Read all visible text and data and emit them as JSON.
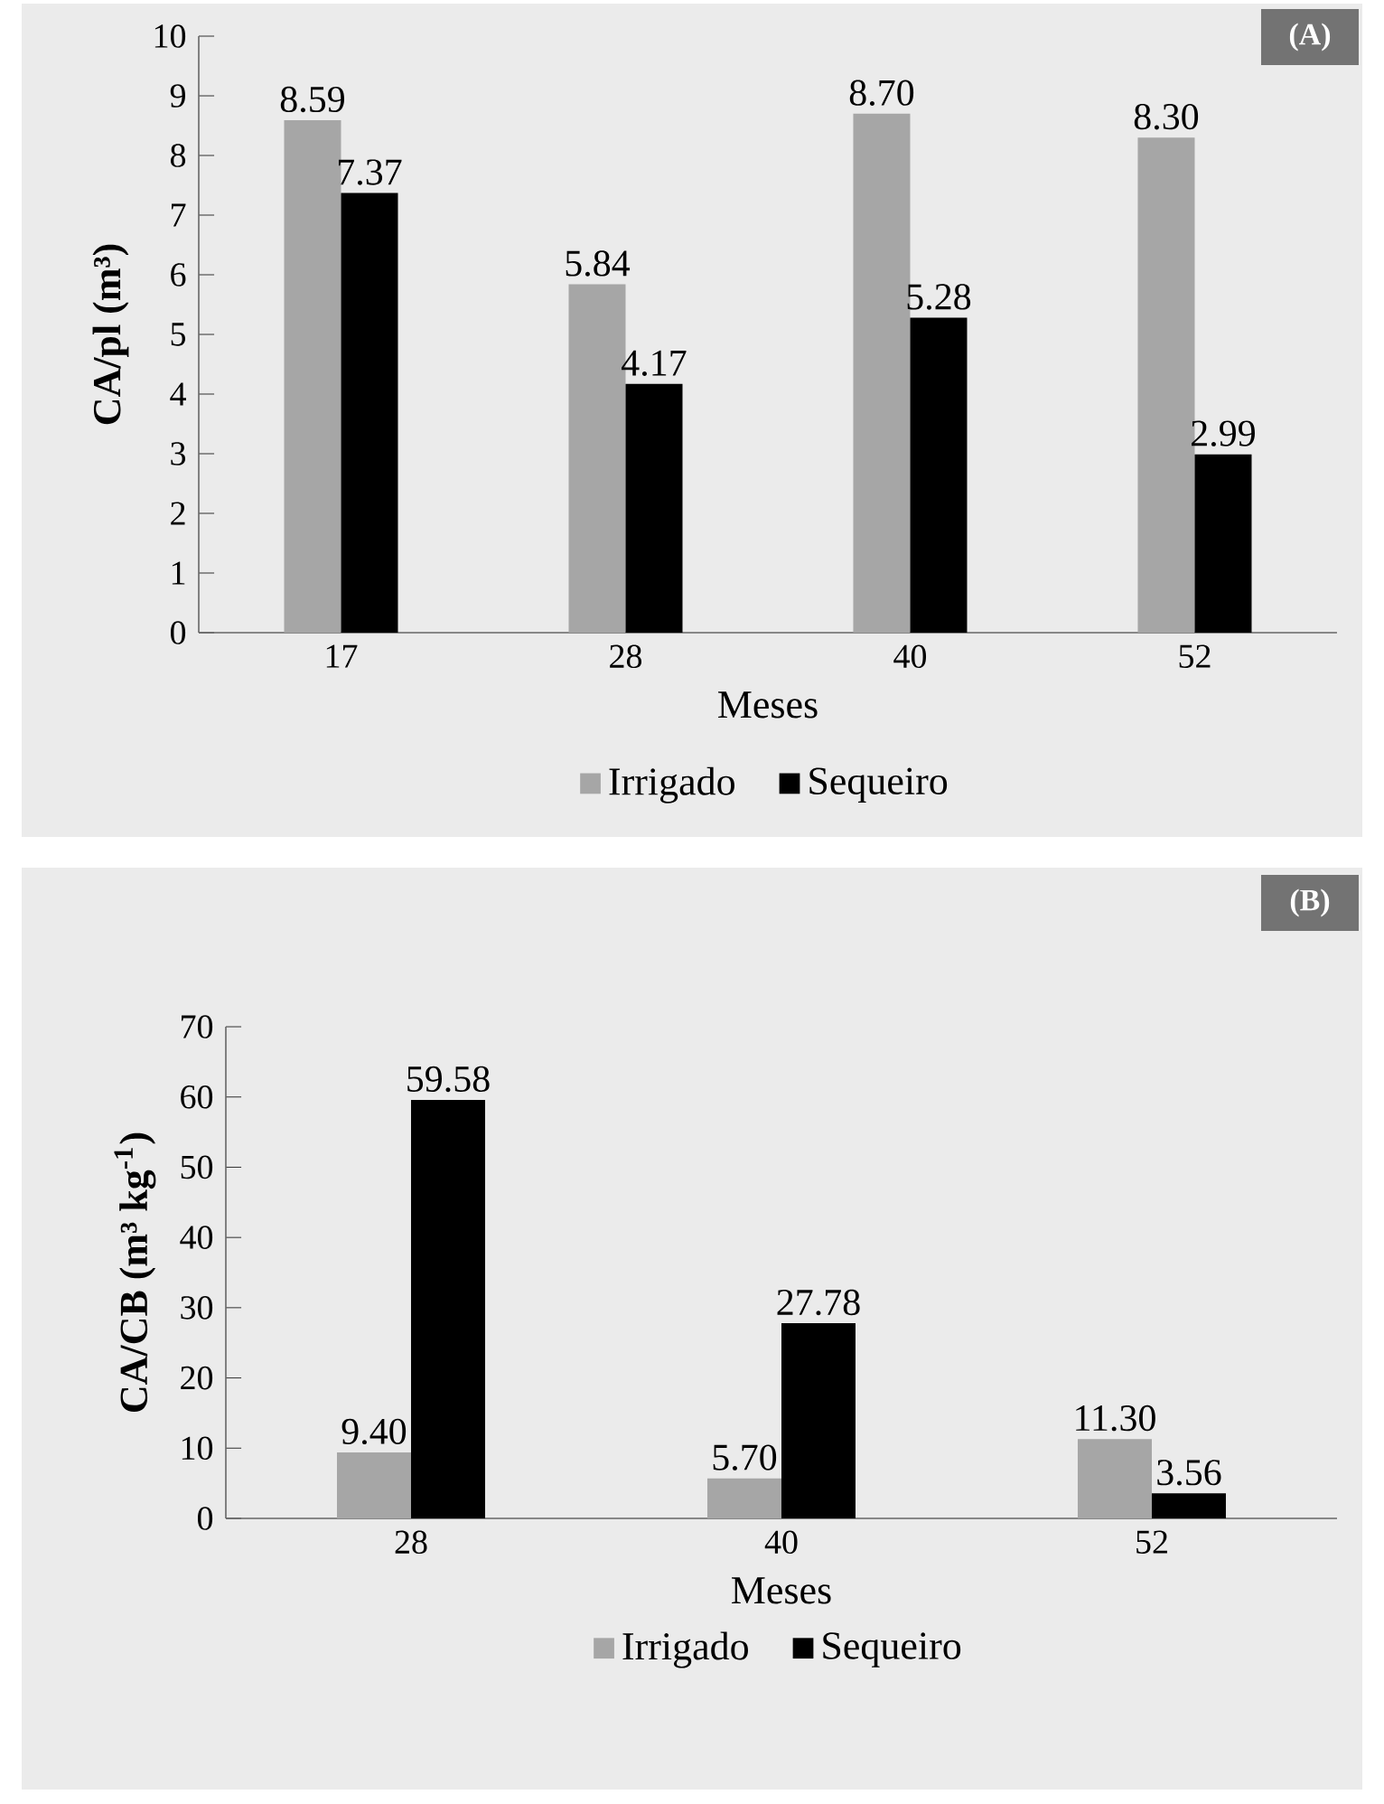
{
  "chart_data": [
    {
      "type": "bar",
      "categories": [
        "17",
        "28",
        "40",
        "52"
      ],
      "xlabel": "Meses",
      "ylabel": "CA/pl (m³)",
      "ylim": [
        0,
        10
      ],
      "yticks": [
        0,
        1,
        2,
        3,
        4,
        5,
        6,
        7,
        8,
        9,
        10
      ],
      "legend": "bottom",
      "annotations": [
        "(A)"
      ],
      "series": [
        {
          "name": "Irrigado",
          "color": "#a6a6a6",
          "values": [
            8.59,
            5.84,
            8.7,
            8.3
          ],
          "value_labels": [
            "8.59",
            "5.84",
            "8.70",
            "8.30"
          ]
        },
        {
          "name": "Sequeiro",
          "color": "#000000",
          "values": [
            7.37,
            4.17,
            5.28,
            2.99
          ],
          "value_labels": [
            "7.37",
            "4.17",
            "5.28",
            "2.99"
          ]
        }
      ]
    },
    {
      "type": "bar",
      "categories": [
        "28",
        "40",
        "52"
      ],
      "xlabel": "Meses",
      "ylabel": "CA/CB (m³ kg$^{-1}$)",
      "ylim": [
        0,
        70
      ],
      "yticks": [
        0,
        10,
        20,
        30,
        40,
        50,
        60,
        70
      ],
      "legend": "bottom",
      "annotations": [
        "(B)"
      ],
      "series": [
        {
          "name": "Irrigado",
          "color": "#a6a6a6",
          "values": [
            9.4,
            5.7,
            11.3
          ],
          "value_labels": [
            "9.40",
            "5.70",
            "11.30"
          ]
        },
        {
          "name": "Sequeiro",
          "color": "#000000",
          "values": [
            59.58,
            27.78,
            3.56
          ],
          "value_labels": [
            "59.58",
            "27.78",
            "3.56"
          ]
        }
      ]
    }
  ]
}
